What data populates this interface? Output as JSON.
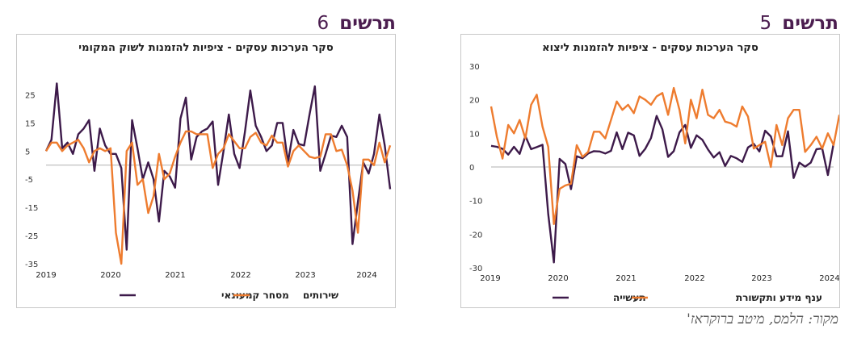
{
  "page": {
    "source": "מקור: הלמס, מיטב ברוקראז'"
  },
  "figures": [
    {
      "id": "left",
      "heading_word": "תרשים",
      "heading_number": "6"
    },
    {
      "id": "right",
      "heading_word": "תרשים",
      "heading_number": "5"
    }
  ],
  "chart_data": [
    {
      "type": "line",
      "title": "סקר הערכות עסקים - ציפיות להזמנות לשוק המקומי",
      "xlabel": "",
      "ylabel": "",
      "ylim": [
        -35,
        30
      ],
      "y_ticks": [
        25,
        15,
        5,
        -5,
        -15,
        -25,
        -35
      ],
      "x_ticks": [
        "2019",
        "2020",
        "2021",
        "2022",
        "2023",
        "2024"
      ],
      "grid": false,
      "legend": "bottom",
      "colors": {
        "series1": "#3d1a4a",
        "series2": "#ee7c2f",
        "axis": "#b0b0b0"
      },
      "series": [
        {
          "name": "מסחר קמעונאי",
          "values": [
            5.0,
            9.0,
            29.0,
            6.0,
            8.0,
            4.0,
            11.0,
            13.0,
            16.0,
            -2.0,
            13.0,
            7.0,
            4.0,
            4.0,
            -1.0,
            -30.0,
            16.0,
            6.0,
            -5.0,
            1.0,
            -5.0,
            -20.0,
            -2.0,
            -4.0,
            -8.0,
            16.5,
            24.0,
            2.0,
            10.0,
            12.0,
            13.0,
            15.5,
            -7.0,
            5.0,
            18.0,
            4.0,
            -1.0,
            12.0,
            26.5,
            14.0,
            10.0,
            5.0,
            7.0,
            15.0,
            15.0,
            1.0,
            12.5,
            7.5,
            7.0,
            18.0,
            28.0,
            -2.0,
            4.0,
            10.5,
            10.0,
            14.0,
            10.0,
            -28.0,
            -13.0,
            1.0,
            -3.0,
            4.0,
            18.0,
            7.0,
            -8.5
          ]
        },
        {
          "name": "שירותים",
          "values": [
            5.0,
            8.0,
            8.0,
            5.0,
            7.0,
            8.0,
            9.0,
            6.0,
            1.0,
            5.0,
            6.0,
            5.0,
            6.0,
            -24.0,
            -35.0,
            5.0,
            8.0,
            -7.0,
            -5.0,
            -17.0,
            -11.0,
            4.0,
            -5.0,
            -3.0,
            3.0,
            8.0,
            12.0,
            12.0,
            11.0,
            11.0,
            11.0,
            -1.0,
            4.0,
            6.0,
            11.0,
            8.5,
            6.0,
            6.0,
            10.0,
            11.5,
            8.0,
            7.0,
            10.5,
            8.0,
            8.0,
            -0.5,
            5.0,
            7.0,
            5.0,
            3.0,
            2.5,
            3.0,
            11.0,
            11.0,
            5.0,
            5.5,
            0.0,
            -9.0,
            -24.0,
            2.0,
            2.0,
            0.0,
            8.0,
            1.0,
            7.0
          ]
        }
      ]
    },
    {
      "type": "line",
      "title": "סקר הערכות עסקים - ציפיות להזמנות ליצוא",
      "xlabel": "",
      "ylabel": "",
      "ylim": [
        -30,
        30
      ],
      "y_ticks": [
        30,
        20,
        10,
        0,
        -10,
        -20,
        -30
      ],
      "x_ticks": [
        "2019",
        "2020",
        "2021",
        "2022",
        "2023",
        "2024"
      ],
      "grid": false,
      "legend": "bottom",
      "colors": {
        "series1": "#3d1a4a",
        "series2": "#ee7c2f",
        "axis": "#b0b0b0"
      },
      "series": [
        {
          "name": "תעשייה",
          "values": [
            6.3,
            6.0,
            5.4,
            3.7,
            6.0,
            3.9,
            9.2,
            5.3,
            5.9,
            6.6,
            -14.0,
            -28.4,
            2.4,
            0.9,
            -6.6,
            3.2,
            2.6,
            4.0,
            4.7,
            4.6,
            4.0,
            4.8,
            10.3,
            5.3,
            10.2,
            9.4,
            3.3,
            5.4,
            8.6,
            15.2,
            11.2,
            3.0,
            4.7,
            10.3,
            12.5,
            5.7,
            9.4,
            8.1,
            5.2,
            2.8,
            4.4,
            0.3,
            3.3,
            2.6,
            1.5,
            5.8,
            6.9,
            4.6,
            10.8,
            9.1,
            3.2,
            3.2,
            10.6,
            -3.3,
            1.3,
            0.1,
            1.3,
            5.3,
            5.5,
            -2.4,
            7.0
          ]
        },
        {
          "name": "ענף מידע ותקשורת",
          "values": [
            18.0,
            9.0,
            2.5,
            12.5,
            10.0,
            14.0,
            8.5,
            18.5,
            21.5,
            12.0,
            6.0,
            -17.0,
            -6.5,
            -5.5,
            -5.0,
            6.5,
            3.0,
            4.5,
            10.5,
            10.5,
            8.5,
            14.0,
            19.5,
            17.0,
            18.5,
            16.0,
            21.0,
            20.0,
            18.5,
            21.0,
            22.0,
            15.5,
            23.5,
            17.0,
            7.0,
            20.0,
            14.5,
            23.0,
            15.5,
            14.5,
            17.0,
            13.5,
            13.0,
            12.0,
            18.0,
            15.0,
            5.5,
            6.5,
            7.5,
            0.0,
            12.5,
            6.5,
            14.5,
            17.0,
            17.0,
            4.5,
            6.5,
            9.0,
            5.5,
            10.0,
            6.5,
            15.5
          ]
        }
      ]
    }
  ]
}
